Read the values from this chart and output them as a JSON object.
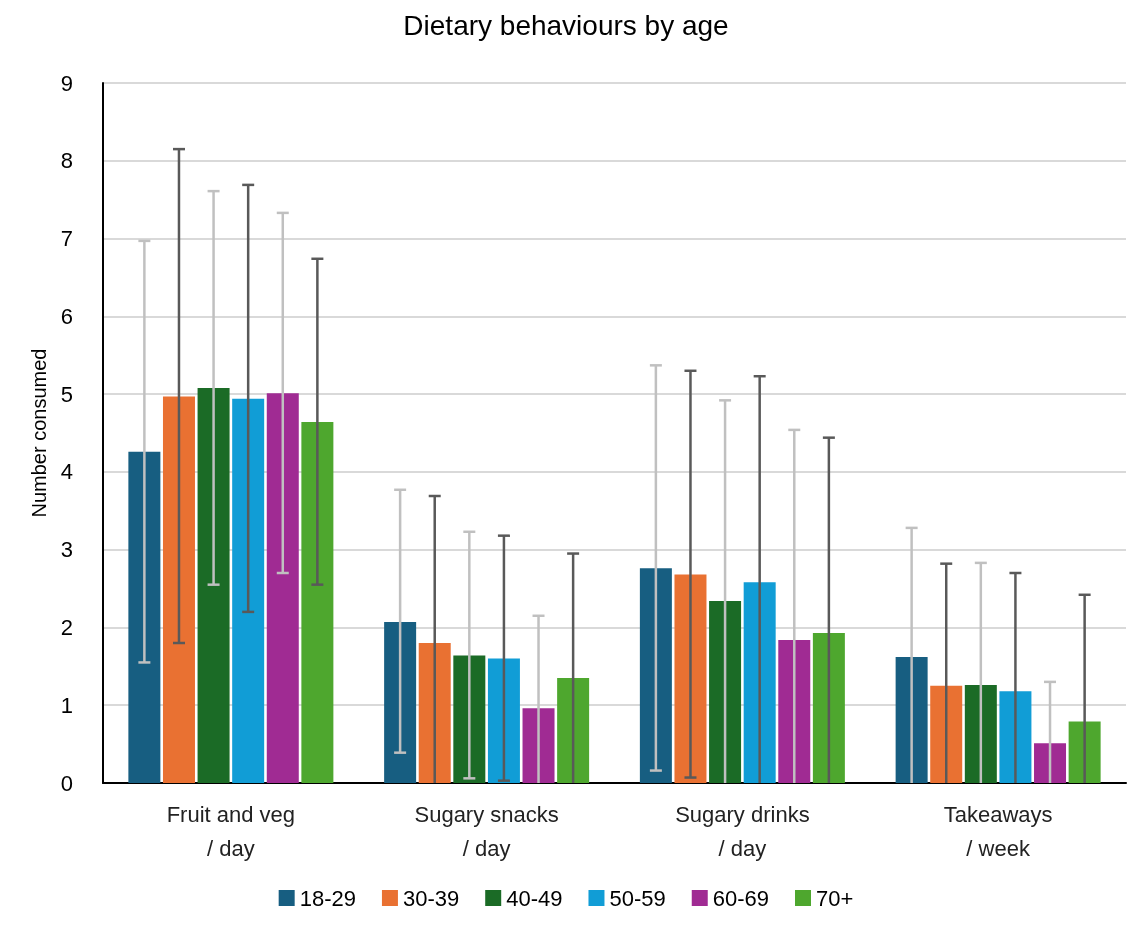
{
  "chart_data": {
    "type": "bar",
    "title": "Dietary behaviours by age",
    "ylabel": "Number consumed",
    "categories": [
      "Fruit and veg\n/ day",
      "Sugary snacks\n/ day",
      "Sugary drinks\n/ day",
      "Takeaways\n/ week"
    ],
    "series": [
      {
        "name": "18-29",
        "color": "#175e81",
        "values": [
          4.26,
          2.07,
          2.76,
          1.62
        ],
        "errors": [
          [
            1.55,
            6.97
          ],
          [
            0.39,
            3.77
          ],
          [
            0.16,
            5.37
          ],
          [
            0,
            3.28
          ]
        ]
      },
      {
        "name": "30-39",
        "color": "#e97132",
        "values": [
          4.97,
          1.8,
          2.68,
          1.25
        ],
        "errors": [
          [
            1.8,
            8.15
          ],
          [
            0,
            3.69
          ],
          [
            0.07,
            5.3
          ],
          [
            0,
            2.82
          ]
        ]
      },
      {
        "name": "40-49",
        "color": "#1b6b26",
        "values": [
          5.08,
          1.64,
          2.34,
          1.26
        ],
        "errors": [
          [
            2.55,
            7.61
          ],
          [
            0.06,
            3.23
          ],
          [
            0,
            4.92
          ],
          [
            0,
            2.83
          ]
        ]
      },
      {
        "name": "50-59",
        "color": "#119dd6",
        "values": [
          4.94,
          1.6,
          2.58,
          1.18
        ],
        "errors": [
          [
            2.2,
            7.69
          ],
          [
            0.03,
            3.18
          ],
          [
            0,
            5.23
          ],
          [
            0,
            2.7
          ]
        ]
      },
      {
        "name": "60-69",
        "color": "#a02b93",
        "values": [
          5.01,
          0.96,
          1.84,
          0.51
        ],
        "errors": [
          [
            2.7,
            7.33
          ],
          [
            0,
            2.15
          ],
          [
            0,
            4.54
          ],
          [
            0,
            1.3
          ]
        ]
      },
      {
        "name": "70+",
        "color": "#4ea72e",
        "values": [
          4.64,
          1.35,
          1.93,
          0.79
        ],
        "errors": [
          [
            2.55,
            6.74
          ],
          [
            0,
            2.95
          ],
          [
            0,
            4.44
          ],
          [
            0,
            2.42
          ]
        ]
      }
    ],
    "ylim": [
      0,
      9
    ],
    "yticks": [
      0,
      1,
      2,
      3,
      4,
      5,
      6,
      7,
      8,
      9
    ],
    "grid": "y",
    "legend": "bottom"
  }
}
